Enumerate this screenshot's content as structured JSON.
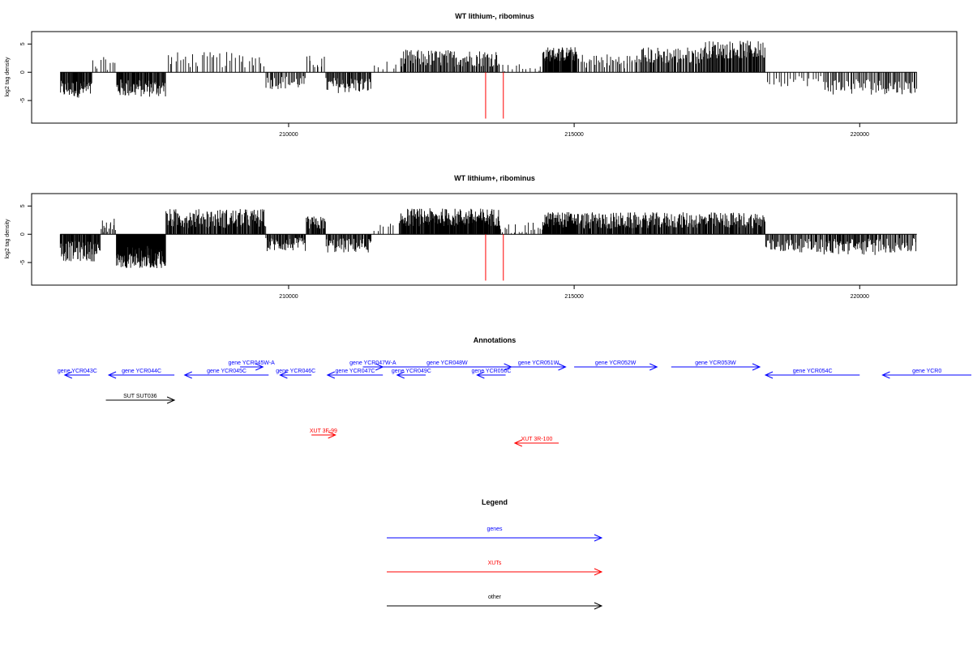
{
  "colors": {
    "gene": "#0000ff",
    "xut": "#ff0000",
    "other": "#000000",
    "marker": "#ff0000"
  },
  "chart_data": [
    {
      "type": "bar",
      "title": "WT lithium-, ribominus",
      "ylabel": "log2 tag density",
      "xlim": [
        205500,
        221700
      ],
      "ylim": [
        -9,
        7.2
      ],
      "xticks": [
        210000,
        215000,
        220000
      ],
      "yticks": [
        -5,
        0,
        5
      ],
      "xtick_labels": [
        "210000",
        "215000",
        "220000"
      ],
      "ytick_labels": [
        "-5",
        "0",
        "5"
      ],
      "markers_x": [
        213450,
        213760
      ],
      "segments": [
        {
          "x0": 206000,
          "x1": 206560,
          "mean": -3.0,
          "amp": 1.5,
          "n": 55
        },
        {
          "x0": 206560,
          "x1": 206980,
          "mean": 1.2,
          "amp": 1.5,
          "n": 10
        },
        {
          "x0": 206980,
          "x1": 207850,
          "mean": -2.8,
          "amp": 1.6,
          "n": 80
        },
        {
          "x0": 207850,
          "x1": 209600,
          "mean": 2.2,
          "amp": 1.4,
          "n": 38
        },
        {
          "x0": 209600,
          "x1": 210300,
          "mean": -1.8,
          "amp": 1.2,
          "n": 35
        },
        {
          "x0": 210300,
          "x1": 210650,
          "mean": 1.8,
          "amp": 1.2,
          "n": 10
        },
        {
          "x0": 210650,
          "x1": 211450,
          "mean": -2.3,
          "amp": 1.4,
          "n": 55
        },
        {
          "x0": 211450,
          "x1": 211950,
          "mean": 1.0,
          "amp": 1.0,
          "n": 6
        },
        {
          "x0": 211950,
          "x1": 213700,
          "mean": 2.5,
          "amp": 1.5,
          "n": 110
        },
        {
          "x0": 213700,
          "x1": 214450,
          "mean": 0.5,
          "amp": 1.0,
          "n": 12
        },
        {
          "x0": 214450,
          "x1": 215050,
          "mean": 3.2,
          "amp": 1.3,
          "n": 65
        },
        {
          "x0": 215050,
          "x1": 216150,
          "mean": 2.0,
          "amp": 1.3,
          "n": 40
        },
        {
          "x0": 216150,
          "x1": 217250,
          "mean": 3.0,
          "amp": 1.5,
          "n": 70
        },
        {
          "x0": 217250,
          "x1": 218350,
          "mean": 4.0,
          "amp": 1.6,
          "n": 90
        },
        {
          "x0": 218350,
          "x1": 219350,
          "mean": -1.5,
          "amp": 1.0,
          "n": 20
        },
        {
          "x0": 219350,
          "x1": 220300,
          "mean": -2.5,
          "amp": 1.5,
          "n": 40
        },
        {
          "x0": 220300,
          "x1": 221000,
          "mean": -2.6,
          "amp": 1.3,
          "n": 35
        }
      ]
    },
    {
      "type": "bar",
      "title": "WT lithium+, ribominus",
      "ylabel": "log2 tag density",
      "xlim": [
        205500,
        221700
      ],
      "ylim": [
        -9,
        7.2
      ],
      "xticks": [
        210000,
        215000,
        220000
      ],
      "yticks": [
        -5,
        0,
        5
      ],
      "xtick_labels": [
        "210000",
        "215000",
        "220000"
      ],
      "ytick_labels": [
        "-5",
        "0",
        "5"
      ],
      "markers_x": [
        213450,
        213760
      ],
      "segments": [
        {
          "x0": 206000,
          "x1": 206700,
          "mean": -3.0,
          "amp": 1.8,
          "n": 70
        },
        {
          "x0": 206700,
          "x1": 206980,
          "mean": 1.5,
          "amp": 1.4,
          "n": 14
        },
        {
          "x0": 206980,
          "x1": 207850,
          "mean": -4.0,
          "amp": 2.0,
          "n": 150
        },
        {
          "x0": 207850,
          "x1": 209600,
          "mean": 2.8,
          "amp": 1.7,
          "n": 160
        },
        {
          "x0": 209600,
          "x1": 210300,
          "mean": -1.8,
          "amp": 1.2,
          "n": 60
        },
        {
          "x0": 210300,
          "x1": 210650,
          "mean": 2.0,
          "amp": 1.2,
          "n": 30
        },
        {
          "x0": 210650,
          "x1": 211450,
          "mean": -2.0,
          "amp": 1.3,
          "n": 60
        },
        {
          "x0": 211450,
          "x1": 211950,
          "mean": 1.0,
          "amp": 1.0,
          "n": 8
        },
        {
          "x0": 211950,
          "x1": 213700,
          "mean": 3.0,
          "amp": 1.6,
          "n": 200
        },
        {
          "x0": 213700,
          "x1": 214450,
          "mean": 0.8,
          "amp": 1.3,
          "n": 20
        },
        {
          "x0": 214450,
          "x1": 215050,
          "mean": 2.6,
          "amp": 1.4,
          "n": 70
        },
        {
          "x0": 215050,
          "x1": 216150,
          "mean": 2.4,
          "amp": 1.5,
          "n": 100
        },
        {
          "x0": 216150,
          "x1": 218350,
          "mean": 2.5,
          "amp": 1.4,
          "n": 180
        },
        {
          "x0": 218350,
          "x1": 219350,
          "mean": -2.0,
          "amp": 1.2,
          "n": 60
        },
        {
          "x0": 219350,
          "x1": 220300,
          "mean": -2.2,
          "amp": 1.5,
          "n": 70
        },
        {
          "x0": 220300,
          "x1": 221000,
          "mean": -2.0,
          "amp": 1.3,
          "n": 40
        }
      ]
    }
  ],
  "annotations": {
    "title": "Annotations",
    "features": [
      {
        "label": "gene YCR043C",
        "kind": "gene",
        "x0": 206080,
        "x1": 206520,
        "strand": "-",
        "row": 0
      },
      {
        "label": "gene YCR044C",
        "kind": "gene",
        "x0": 206850,
        "x1": 208000,
        "strand": "-",
        "row": 0
      },
      {
        "label": "gene YCR045W-A",
        "kind": "gene",
        "x0": 209150,
        "x1": 209550,
        "strand": "+",
        "row": 1
      },
      {
        "label": "gene YCR045C",
        "kind": "gene",
        "x0": 208180,
        "x1": 209650,
        "strand": "-",
        "row": 0
      },
      {
        "label": "gene YCR046C",
        "kind": "gene",
        "x0": 209850,
        "x1": 210400,
        "strand": "-",
        "row": 0
      },
      {
        "label": "gene YCR047W-A",
        "kind": "gene",
        "x0": 211300,
        "x1": 211650,
        "strand": "+",
        "row": 1
      },
      {
        "label": "gene YCR047C",
        "kind": "gene",
        "x0": 210680,
        "x1": 211650,
        "strand": "-",
        "row": 0
      },
      {
        "label": "gene YCR048W",
        "kind": "gene",
        "x0": 211650,
        "x1": 213900,
        "strand": "+",
        "row": 1
      },
      {
        "label": "gene YCR049C",
        "kind": "gene",
        "x0": 211900,
        "x1": 212400,
        "strand": "-",
        "row": 0
      },
      {
        "label": "gene YCR050C",
        "kind": "gene",
        "x0": 213300,
        "x1": 213800,
        "strand": "-",
        "row": 0
      },
      {
        "label": "gene YCR051W",
        "kind": "gene",
        "x0": 213900,
        "x1": 214850,
        "strand": "+",
        "row": 1
      },
      {
        "label": "gene YCR052W",
        "kind": "gene",
        "x0": 215000,
        "x1": 216450,
        "strand": "+",
        "row": 1
      },
      {
        "label": "gene YCR053W",
        "kind": "gene",
        "x0": 216700,
        "x1": 218250,
        "strand": "+",
        "row": 1
      },
      {
        "label": "gene YCR054C",
        "kind": "gene",
        "x0": 218350,
        "x1": 220000,
        "strand": "-",
        "row": 0
      },
      {
        "label": "gene YCR0",
        "kind": "gene",
        "x0": 220400,
        "x1": 222000,
        "strand": "-",
        "row": 0
      },
      {
        "label": "SUT SUT036",
        "kind": "other",
        "x0": 206800,
        "x1": 208000,
        "strand": "+",
        "row": 2
      },
      {
        "label": "XUT 3F-99",
        "kind": "xut",
        "x0": 210400,
        "x1": 210820,
        "strand": "+",
        "row": 3
      },
      {
        "label": "XUT 3R-100",
        "kind": "xut",
        "x0": 213960,
        "x1": 214730,
        "strand": "-",
        "row": 4
      }
    ]
  },
  "legend": {
    "title": "Legend",
    "items": [
      {
        "label": "genes",
        "kind": "gene"
      },
      {
        "label": "XUTs",
        "kind": "xut"
      },
      {
        "label": "other",
        "kind": "other"
      }
    ]
  }
}
